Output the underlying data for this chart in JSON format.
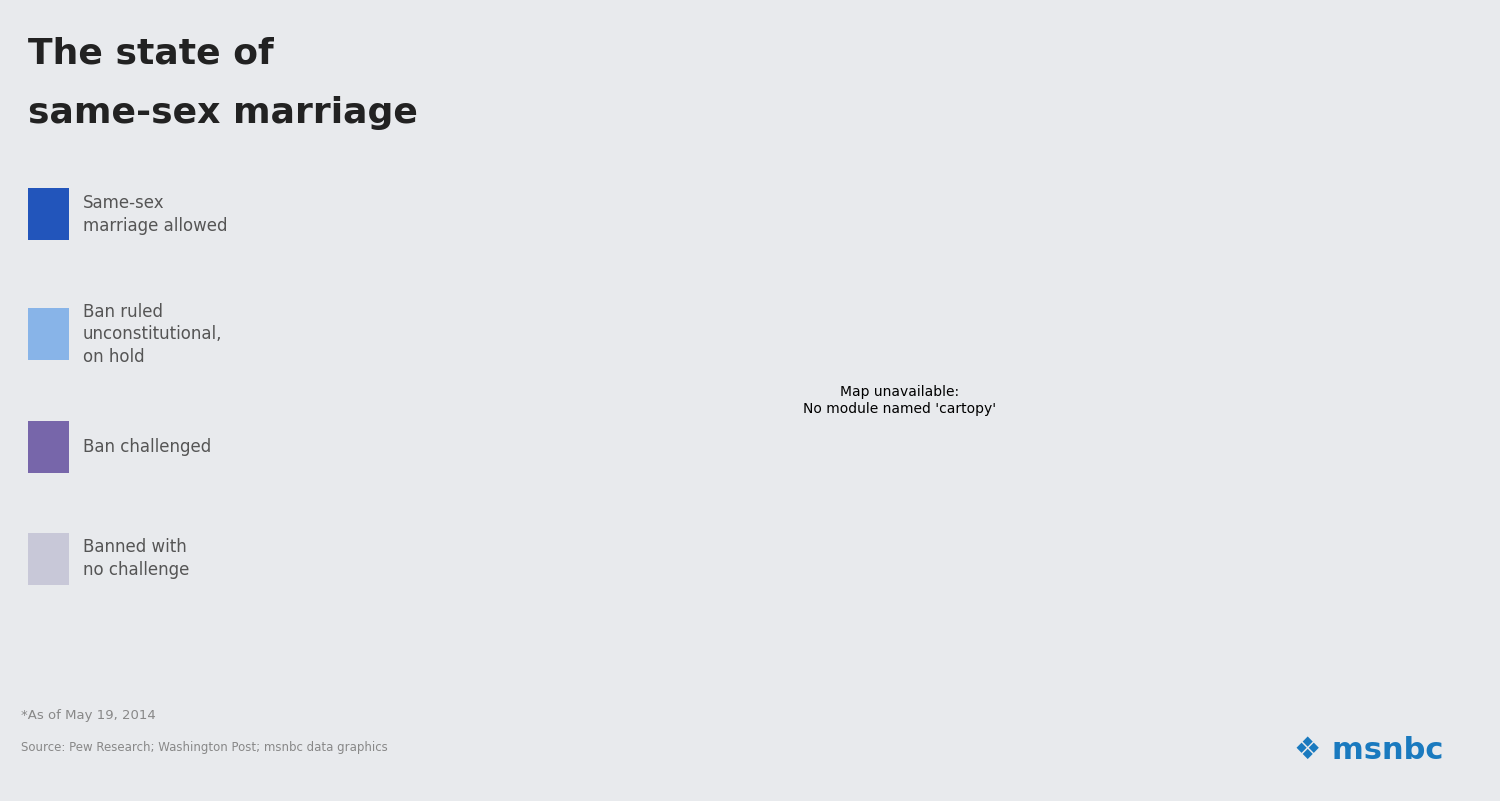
{
  "title_line1": "The state of",
  "title_line2": "same-sex marriage",
  "footnote1": "*As of May 19, 2014",
  "footnote2": "Source: Pew Research; Washington Post; msnbc data graphics",
  "background_color": "#e8eaed",
  "map_background": "#ffffff",
  "legend_items": [
    {
      "label": "Same-sex\nmarriage allowed",
      "color": "#2255bb"
    },
    {
      "label": "Ban ruled\nunconstitutional,\non hold",
      "color": "#88b4e8"
    },
    {
      "label": "Ban challenged",
      "color": "#7766aa"
    },
    {
      "label": "Banned with\nno challenge",
      "color": "#c8c8d8"
    }
  ],
  "state_colors": {
    "Washington": "#2255bb",
    "Oregon": "#2255bb",
    "California": "#2255bb",
    "Nevada": "#2255bb",
    "New Mexico": "#2255bb",
    "Colorado": "#2255bb",
    "Minnesota": "#2255bb",
    "Iowa": "#2255bb",
    "Illinois": "#2255bb",
    "Maine": "#2255bb",
    "New Hampshire": "#2255bb",
    "Vermont": "#2255bb",
    "Massachusetts": "#2255bb",
    "Rhode Island": "#2255bb",
    "Connecticut": "#2255bb",
    "New York": "#2255bb",
    "New Jersey": "#2255bb",
    "Delaware": "#2255bb",
    "Maryland": "#2255bb",
    "Hawaii": "#2255bb",
    "Idaho": "#88b4e8",
    "Utah": "#88b4e8",
    "Oklahoma": "#88b4e8",
    "Virginia": "#88b4e8",
    "Indiana": "#88b4e8",
    "Wisconsin": "#88b4e8",
    "Texas": "#88b4e8",
    "Montana": "#7766aa",
    "Wyoming": "#7766aa",
    "Arizona": "#7766aa",
    "South Dakota": "#7766aa",
    "Nebraska": "#7766aa",
    "Kansas": "#7766aa",
    "Missouri": "#7766aa",
    "Arkansas": "#2255bb",
    "Tennessee": "#7766aa",
    "Georgia": "#7766aa",
    "Florida": "#7766aa",
    "Alabama": "#7766aa",
    "Mississippi": "#7766aa",
    "Louisiana": "#7766aa",
    "Kentucky": "#7766aa",
    "Ohio": "#7766aa",
    "West Virginia": "#7766aa",
    "North Carolina": "#7766aa",
    "South Carolina": "#7766aa",
    "Pennsylvania": "#7766aa",
    "Alaska": "#7766aa",
    "Michigan": "#88b4e8",
    "North Dakota": "#c8c8d8"
  },
  "default_color": "#7766aa",
  "edge_color": "#ffffff",
  "edge_width": 0.8
}
